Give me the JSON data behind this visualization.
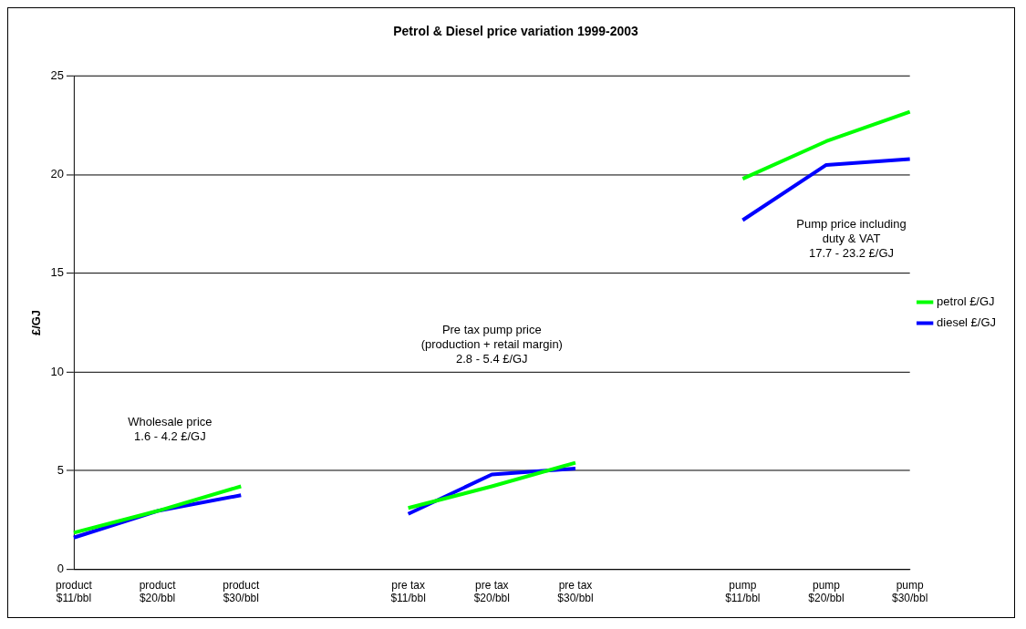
{
  "chart_data": {
    "type": "line",
    "title": "Petrol & Diesel price variation 1999-2003",
    "ylabel": "£/GJ",
    "categories": [
      "product\n$11/bbl",
      "product\n$20/bbl",
      "product\n$30/bbl",
      null,
      "pre tax\n$11/bbl",
      "pre tax\n$20/bbl",
      "pre tax\n$30/bbl",
      null,
      "pump\n$11/bbl",
      "pump\n$20/bbl",
      "pump\n$30/bbl"
    ],
    "series": [
      {
        "name": "petrol £/GJ",
        "color": "#00ff00",
        "values": [
          1.85,
          2.95,
          4.2,
          null,
          3.1,
          4.2,
          5.4,
          null,
          19.8,
          21.7,
          23.2
        ]
      },
      {
        "name": "diesel £/GJ",
        "color": "#0000ff",
        "values": [
          1.6,
          2.95,
          3.75,
          null,
          2.8,
          4.8,
          5.1,
          null,
          17.7,
          20.5,
          20.8
        ]
      }
    ],
    "ylim": [
      0,
      25
    ],
    "yticks": [
      0,
      5,
      10,
      15,
      20,
      25
    ],
    "grid": "y",
    "legend": "right",
    "marker": "none",
    "line_style": "solid",
    "annotations": [
      "Wholesale price\n1.6 - 4.2 £/GJ",
      "Pre tax pump price\n(production + retail margin)\n2.8 - 5.4 £/GJ",
      "Pump price including\nduty & VAT\n17.7 - 23.2 £/GJ"
    ]
  }
}
